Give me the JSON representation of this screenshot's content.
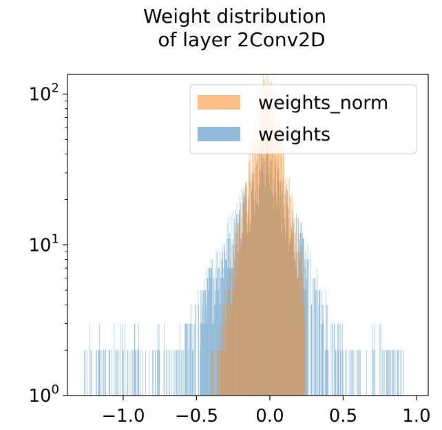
{
  "chart_data": {
    "type": "histogram",
    "title_lines": [
      "Weight distribution",
      "of layer 2Conv2D"
    ],
    "xlabel": "",
    "ylabel": "",
    "xlim": [
      -1.38,
      1.08
    ],
    "ylim": [
      1,
      135
    ],
    "y_scale": "log",
    "grid": false,
    "legend_position": "top-right",
    "x_ticks": [
      -1.0,
      -0.5,
      0.0,
      0.5,
      1.0
    ],
    "x_tick_labels": [
      "−1.0",
      "−0.5",
      "0.0",
      "0.5",
      "1.0"
    ],
    "y_ticks": [
      1,
      10,
      100
    ],
    "y_tick_labels": [
      {
        "base": "10",
        "exp": "0"
      },
      {
        "base": "10",
        "exp": "1"
      },
      {
        "base": "10",
        "exp": "2"
      }
    ],
    "series": [
      {
        "name": "weights",
        "color": "#1f77b4",
        "alpha": 0.5,
        "core_range": [
          -0.48,
          0.25
        ],
        "peak": [
          -0.03,
          40
        ],
        "tail_range": [
          -1.27,
          0.96
        ],
        "decay_left": 0.19,
        "decay_right": 0.17,
        "bin_width": 0.003
      },
      {
        "name": "weights_norm",
        "color": "#ff7f0e",
        "alpha": 0.5,
        "core_range": [
          -0.43,
          0.24
        ],
        "peak": [
          -0.02,
          130
        ],
        "tail_range": [
          -0.43,
          0.24
        ],
        "decay_left": 0.08,
        "decay_right": 0.08,
        "bin_width": 0.003
      }
    ]
  }
}
